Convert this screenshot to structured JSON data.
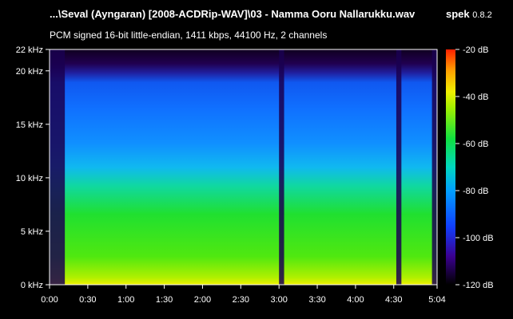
{
  "header": {
    "file_title": "...\\Seval (Ayngaran) [2008-ACDRip-WAV]\\03 - Namma Ooru Nallarukku.wav",
    "app_name": "spek",
    "app_version": "0.8.2",
    "audio_info": "PCM signed 16-bit little-endian, 1411 kbps, 44100 Hz, 2 channels"
  },
  "colors": {
    "background": "#000000",
    "text": "#ffffff",
    "palette": [
      "#000000",
      "#200050",
      "#3a0090",
      "#1040ff",
      "#00a0ff",
      "#00d8c0",
      "#10e040",
      "#a0f000",
      "#f0f000",
      "#ffa000",
      "#ff3000"
    ]
  },
  "chart_data": {
    "type": "heatmap",
    "x_axis": {
      "range_seconds": [
        0,
        304
      ],
      "ticks": [
        {
          "value": 0,
          "label": "0:00"
        },
        {
          "value": 30,
          "label": "0:30"
        },
        {
          "value": 60,
          "label": "1:00"
        },
        {
          "value": 90,
          "label": "1:30"
        },
        {
          "value": 120,
          "label": "2:00"
        },
        {
          "value": 150,
          "label": "2:30"
        },
        {
          "value": 180,
          "label": "3:00"
        },
        {
          "value": 210,
          "label": "3:30"
        },
        {
          "value": 240,
          "label": "4:00"
        },
        {
          "value": 270,
          "label": "4:30"
        },
        {
          "value": 304,
          "label": "5:04"
        }
      ]
    },
    "y_axis": {
      "range_khz": [
        0,
        22
      ],
      "ticks": [
        {
          "value": 0,
          "label": "0 kHz"
        },
        {
          "value": 5,
          "label": "5 kHz"
        },
        {
          "value": 10,
          "label": "10 kHz"
        },
        {
          "value": 15,
          "label": "15 kHz"
        },
        {
          "value": 20,
          "label": "20 kHz"
        },
        {
          "value": 22,
          "label": "22 kHz"
        }
      ]
    },
    "color_scale": {
      "range_db": [
        -120,
        -20
      ],
      "ticks": [
        {
          "value": -20,
          "label": "-20 dB"
        },
        {
          "value": -40,
          "label": "-40 dB"
        },
        {
          "value": -60,
          "label": "-60 dB"
        },
        {
          "value": -80,
          "label": "-80 dB"
        },
        {
          "value": -100,
          "label": "-100 dB"
        },
        {
          "value": -120,
          "label": "-120 dB"
        }
      ]
    },
    "quiet_segments_seconds": [
      [
        0,
        12
      ],
      [
        180,
        184
      ],
      [
        272,
        276
      ],
      [
        300,
        304
      ]
    ]
  }
}
